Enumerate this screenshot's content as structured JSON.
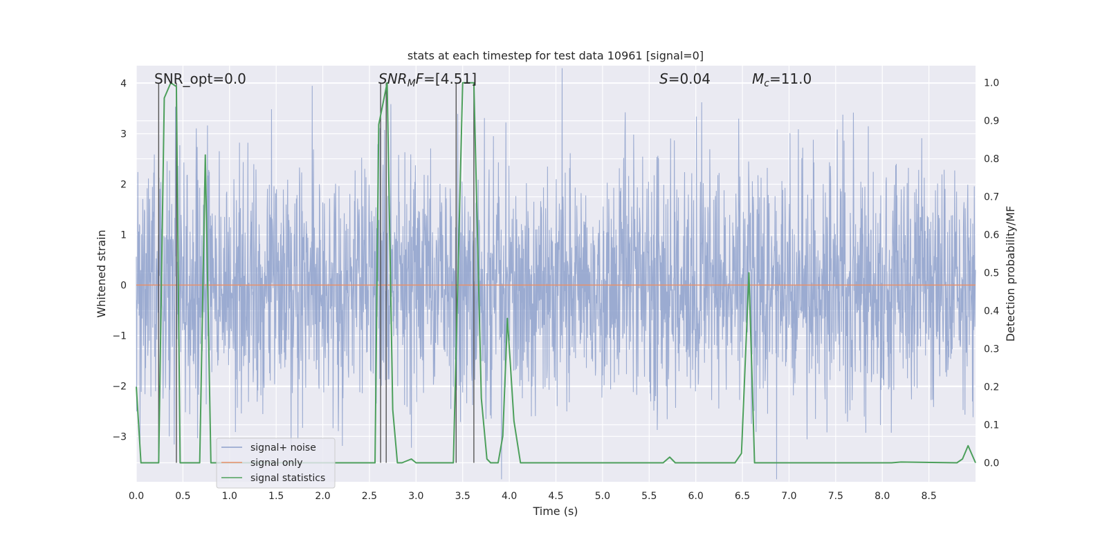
{
  "chart_data": {
    "type": "line",
    "title": "stats at each timestep for test data 10961 [signal=0]",
    "xlabel": "Time (s)",
    "ylabel_left": "Whitened strain",
    "ylabel_right": "Detection probability/MF",
    "xlim": [
      0.0,
      9.0
    ],
    "ylim_left": [
      -3.9,
      4.35
    ],
    "ylim_right": [
      -0.05,
      1.045
    ],
    "x_ticks": [
      "0.0",
      "0.5",
      "1.0",
      "1.5",
      "2.0",
      "2.5",
      "3.0",
      "3.5",
      "4.0",
      "4.5",
      "5.0",
      "5.5",
      "6.0",
      "6.5",
      "7.0",
      "7.5",
      "8.0",
      "8.5"
    ],
    "y_ticks_left": [
      "−3",
      "−2",
      "−1",
      "0",
      "1",
      "2",
      "3",
      "4"
    ],
    "y_ticks_right": [
      "0.0",
      "0.1",
      "0.2",
      "0.3",
      "0.4",
      "0.5",
      "0.6",
      "0.7",
      "0.8",
      "0.9",
      "1.0"
    ],
    "grid": true,
    "legend_position": "lower-left",
    "annotations": [
      {
        "id": "snr_opt",
        "prefix": "SNR_opt=",
        "value": "0.0"
      },
      {
        "id": "snr_mf",
        "base": "SNR",
        "sub": "M",
        "rest": "F=",
        "value": "[4.51]"
      },
      {
        "id": "s_stat",
        "sym": "S",
        "value": "=0.04"
      },
      {
        "id": "mc",
        "sym": "M",
        "sub": "c",
        "value": "=11.0"
      }
    ],
    "series": [
      {
        "name": "signal+ noise",
        "color": "#8da0cb",
        "kind": "noise",
        "noise_std": 1.2,
        "x_range": [
          0.0,
          9.0
        ],
        "sample_rate": 2048
      },
      {
        "name": "signal only",
        "color": "#e8906a",
        "kind": "constant",
        "y": 0.0
      },
      {
        "name": "signal statistics",
        "color": "#4c9f5b",
        "axis": "right",
        "points": [
          [
            0.0,
            0.2
          ],
          [
            0.05,
            0.0
          ],
          [
            0.24,
            0.0
          ],
          [
            0.3,
            0.96
          ],
          [
            0.37,
            1.0
          ],
          [
            0.43,
            0.99
          ],
          [
            0.47,
            0.0
          ],
          [
            0.6,
            0.0
          ],
          [
            0.68,
            0.0
          ],
          [
            0.74,
            0.81
          ],
          [
            0.8,
            0.0
          ],
          [
            0.9,
            0.0
          ],
          [
            1.0,
            0.0
          ],
          [
            2.56,
            0.0
          ],
          [
            2.6,
            0.89
          ],
          [
            2.69,
            1.0
          ],
          [
            2.75,
            0.14
          ],
          [
            2.8,
            0.0
          ],
          [
            2.85,
            0.0
          ],
          [
            2.95,
            0.01
          ],
          [
            3.0,
            0.0
          ],
          [
            3.4,
            0.0
          ],
          [
            3.5,
            1.0
          ],
          [
            3.55,
            1.0
          ],
          [
            3.62,
            1.0
          ],
          [
            3.7,
            0.17
          ],
          [
            3.76,
            0.01
          ],
          [
            3.8,
            0.0
          ],
          [
            3.88,
            0.0
          ],
          [
            3.93,
            0.07
          ],
          [
            3.98,
            0.38
          ],
          [
            4.05,
            0.11
          ],
          [
            4.12,
            0.0
          ],
          [
            4.2,
            0.0
          ],
          [
            5.65,
            0.0
          ],
          [
            5.72,
            0.015
          ],
          [
            5.78,
            0.0
          ],
          [
            6.42,
            0.0
          ],
          [
            6.49,
            0.025
          ],
          [
            6.57,
            0.5
          ],
          [
            6.63,
            0.0
          ],
          [
            8.1,
            0.0
          ],
          [
            8.2,
            0.002
          ],
          [
            8.8,
            0.0
          ],
          [
            8.86,
            0.01
          ],
          [
            8.92,
            0.045
          ],
          [
            9.0,
            0.0
          ]
        ]
      }
    ],
    "vertical_markers": [
      0.24,
      0.43,
      2.62,
      2.68,
      3.43,
      3.62
    ]
  },
  "colors": {
    "axes_bg": "#eaeaf2",
    "grid": "#ffffff",
    "noise": "#8da0cb",
    "signal_only": "#e8906a",
    "stat": "#4c9f5b",
    "marker": "#555555"
  }
}
